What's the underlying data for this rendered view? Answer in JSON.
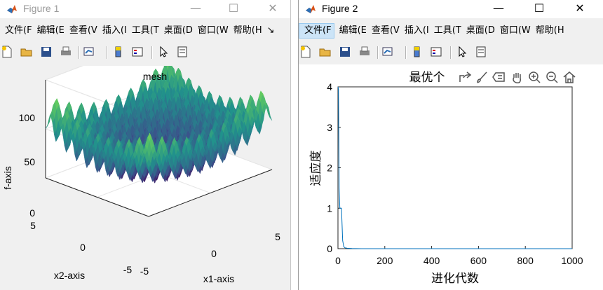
{
  "figure1": {
    "title": "Figure 1",
    "controls": {
      "minimize": "—",
      "maximize": "☐",
      "close": "✕"
    },
    "menu": [
      "文件(F",
      "编辑(E",
      "查看(V",
      "插入(I",
      "工具(T",
      "桌面(D",
      "窗口(W",
      "帮助(H",
      "↘"
    ],
    "toolbar_icons": [
      "new-figure-icon",
      "open-file-icon",
      "save-icon",
      "print-icon",
      "link-plot-icon",
      "insert-colorbar-icon",
      "insert-legend-icon",
      "edit-plot-icon",
      "property-inspector-icon"
    ],
    "plot": {
      "title": "mesh",
      "zlabel": "f-axis",
      "xlabel": "x1-axis",
      "ylabel": "x2-axis",
      "zticks": [
        "100",
        "50",
        "0"
      ],
      "x1_ticks": [
        "-5",
        "0",
        "5"
      ],
      "x2_ticks": [
        "5",
        "0",
        "-5"
      ]
    }
  },
  "figure2": {
    "title": "Figure 2",
    "controls": {
      "minimize": "—",
      "maximize": "☐",
      "close": "✕"
    },
    "menu": [
      "文件(F",
      "编辑(E",
      "查看(V",
      "插入(I",
      "工具(T",
      "桌面(D",
      "窗口(W",
      "帮助(H"
    ],
    "active_menu": 0,
    "toolbar_icons": [
      "new-figure-icon",
      "open-file-icon",
      "save-icon",
      "print-icon",
      "link-plot-icon",
      "insert-colorbar-icon",
      "insert-legend-icon",
      "edit-plot-icon",
      "property-inspector-icon"
    ],
    "axes_toolbar": [
      "export-icon",
      "brush-icon",
      "data-tips-icon",
      "pan-icon",
      "zoom-in-icon",
      "zoom-out-icon",
      "home-icon"
    ],
    "plot": {
      "title": "最优个",
      "ylabel": "适应度",
      "xlabel": "进化代数",
      "xlim": [
        0,
        1000
      ],
      "ylim": [
        0,
        4
      ],
      "xticks": [
        "0",
        "200",
        "400",
        "600",
        "800",
        "1000"
      ],
      "yticks": [
        "0",
        "1",
        "2",
        "3",
        "4"
      ]
    }
  },
  "chart_data": [
    {
      "type": "surface",
      "title": "mesh",
      "xlabel": "x1-axis",
      "ylabel": "x2-axis",
      "zlabel": "f-axis",
      "xlim": [
        -5,
        5
      ],
      "ylim": [
        -5,
        5
      ],
      "zlim": [
        0,
        100
      ],
      "function": "rastrigin: 20 + x1^2 + x2^2 - 10*(cos(2*pi*x1) + cos(2*pi*x2))"
    },
    {
      "type": "line",
      "title": "最优个",
      "xlabel": "进化代数",
      "ylabel": "适应度",
      "xlim": [
        0,
        1000
      ],
      "ylim": [
        0,
        4
      ],
      "series": [
        {
          "x": [
            0,
            2,
            5,
            8,
            10,
            15,
            20,
            25,
            30,
            40,
            60,
            100,
            300,
            600,
            1000
          ],
          "y": [
            4.0,
            3.95,
            1.5,
            1.0,
            1.0,
            1.0,
            0.2,
            0.05,
            0.02,
            0.01,
            0.005,
            0.0,
            0.0,
            0.0,
            0.0
          ]
        }
      ]
    }
  ]
}
